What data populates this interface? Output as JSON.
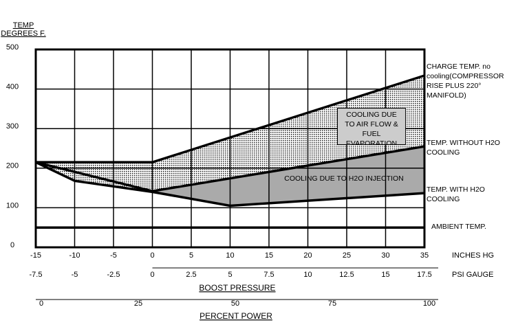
{
  "chart_data": {
    "type": "line",
    "ylabel": [
      "TEMP",
      "DEGREES F."
    ],
    "xlabel": "INCHES HG",
    "x2label": "PSI GAUGE",
    "x2title": "BOOST PRESSURE",
    "x3title": "PERCENT POWER",
    "xlim": [
      -15,
      35
    ],
    "xticks": [
      -15,
      -10,
      -5,
      0,
      5,
      10,
      15,
      20,
      25,
      30,
      35
    ],
    "x2lim": [
      -7.5,
      17.5
    ],
    "x2ticks": [
      -7.5,
      -5,
      -2.5,
      0,
      2.5,
      5,
      7.5,
      10,
      12.5,
      15,
      17.5
    ],
    "x3lim": [
      0,
      100
    ],
    "x3ticks": [
      0,
      25,
      50,
      75,
      100
    ],
    "ylim": [
      0,
      500
    ],
    "yticks": [
      0,
      100,
      200,
      300,
      400,
      500
    ],
    "grid": true,
    "series": [
      {
        "name": "CHARGE TEMP. no cooling(COMPRESSOR RISE PLUS 220° MANIFOLD)",
        "color": "#000000",
        "x": [
          -15,
          0,
          35
        ],
        "values": [
          215,
          215,
          434
        ]
      },
      {
        "name": "TEMP. WITHOUT H2O COOLING",
        "color": "#000000",
        "x": [
          -15,
          0,
          35
        ],
        "values": [
          215,
          142,
          255
        ]
      },
      {
        "name": "TEMP. WITH H2O COOLING",
        "color": "#000000",
        "x": [
          -15,
          -10,
          0,
          10,
          35
        ],
        "values": [
          215,
          168,
          140,
          105,
          137
        ]
      },
      {
        "name": "AMBIENT TEMP.",
        "color": "#000000",
        "x": [
          -15,
          35
        ],
        "values": [
          50,
          50
        ]
      }
    ],
    "annotations": [
      "COOLING DUE TO AIR FLOW & FUEL EVAPORATION",
      "COOLING DUE TO H2O INJECTION"
    ]
  }
}
